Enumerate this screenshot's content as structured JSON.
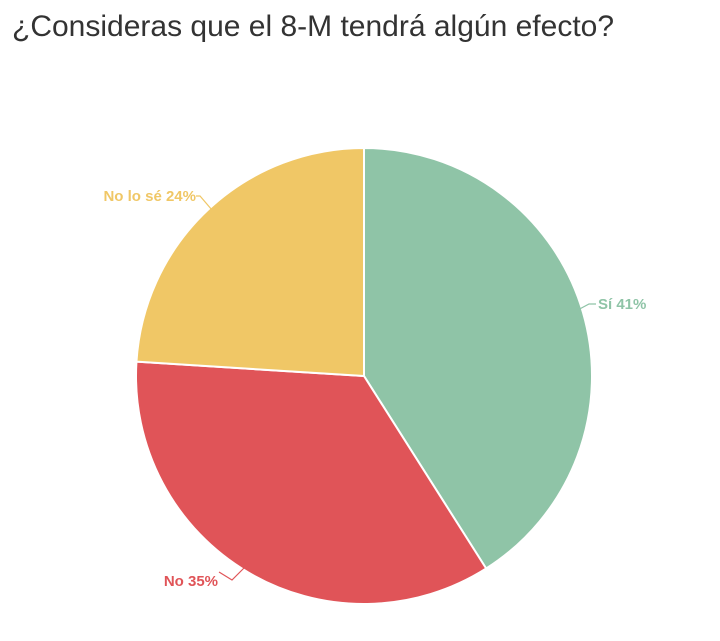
{
  "chart_data": {
    "type": "pie",
    "title": "¿Consideras que el 8-M tendrá algún efecto?",
    "slices": [
      {
        "label": "Sí 41%",
        "value": 41,
        "color": "#8fc4a7"
      },
      {
        "label": "No 35%",
        "value": 35,
        "color": "#e05458"
      },
      {
        "label": "No lo sé 24%",
        "value": 24,
        "color": "#f0c766"
      }
    ],
    "start_angle_deg": 0,
    "direction": "clockwise",
    "legend": "none"
  }
}
